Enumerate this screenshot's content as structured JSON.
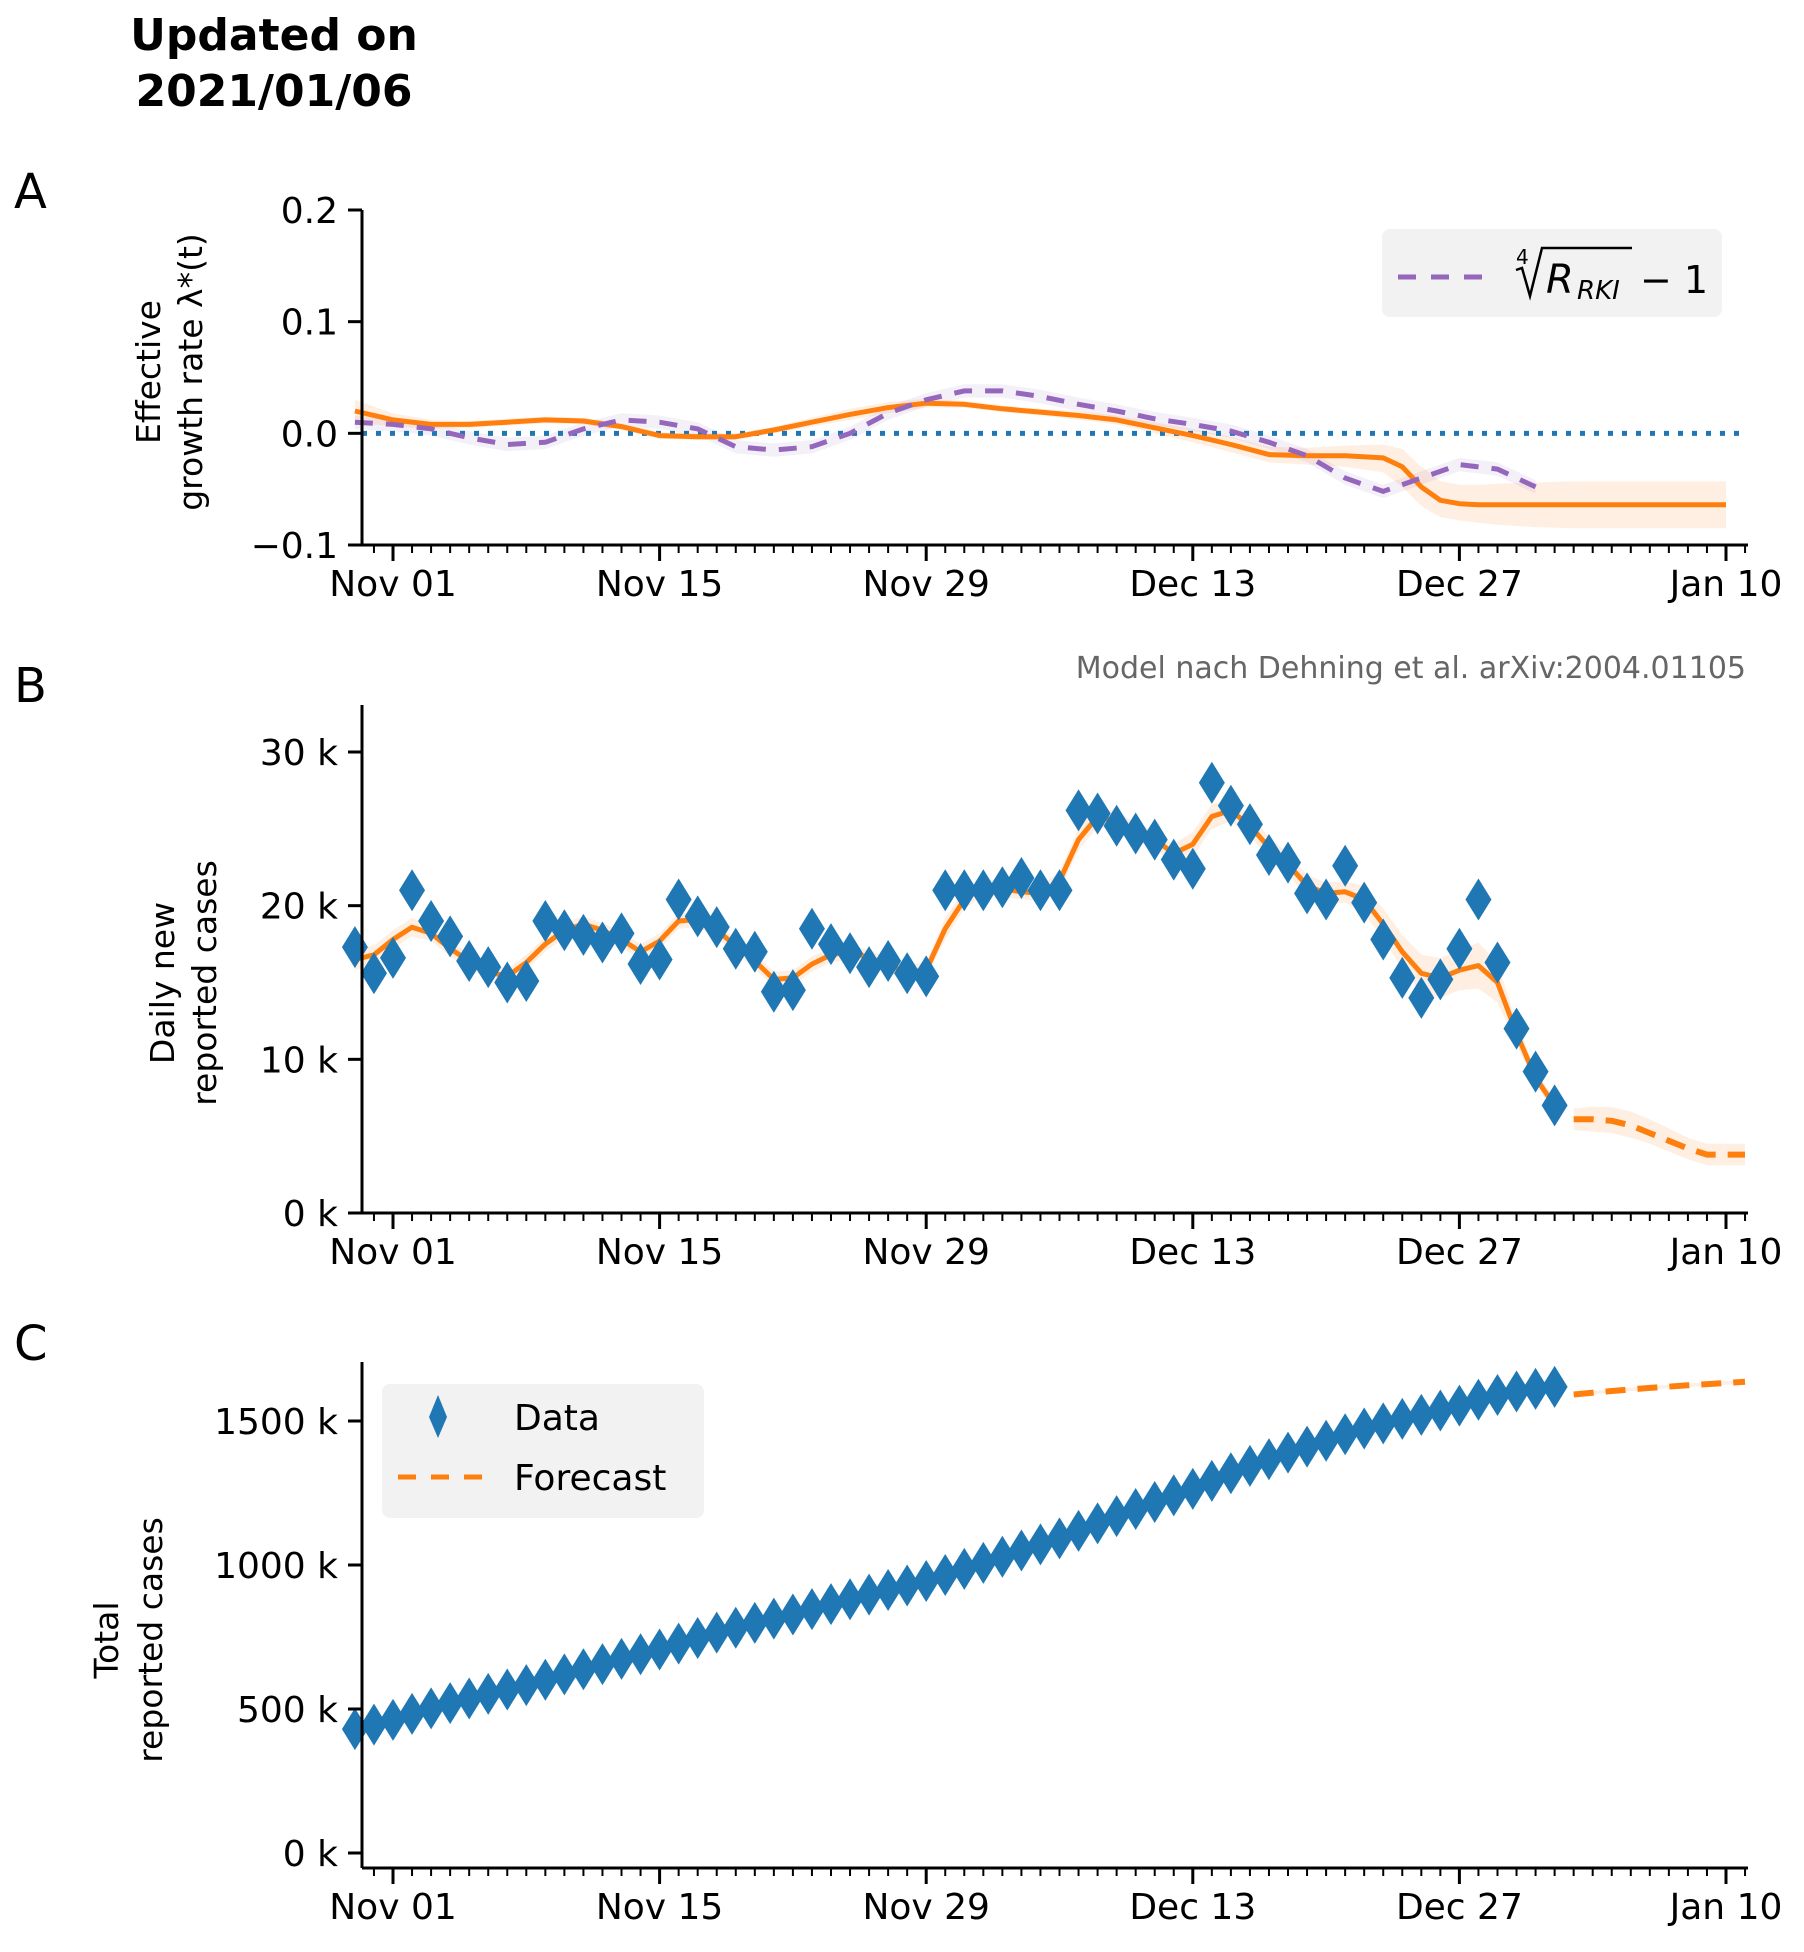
{
  "header": {
    "title_line1": "Updated on",
    "title_line2": "2021/01/06"
  },
  "colors": {
    "data": "#1f77b4",
    "model": "#ff7f0e",
    "band": "#ff7f0e",
    "rki": "#9467bd",
    "zero_line": "#1f77b4",
    "legend_bg": "#f2f2f2",
    "credit": "#666666"
  },
  "x_axis": {
    "start": "2020-10-30",
    "end": "2021-01-11",
    "tick_labels": [
      "Nov 01",
      "Nov 15",
      "Nov 29",
      "Dec 13",
      "Dec 27",
      "Jan 10"
    ],
    "tick_dates": [
      "2020-11-01",
      "2020-11-15",
      "2020-11-29",
      "2020-12-13",
      "2020-12-27",
      "2021-01-10"
    ]
  },
  "credit": "Model nach Dehning et al. arXiv:2004.01105",
  "chart_data": [
    {
      "panel": "A",
      "type": "line",
      "ylabel_line1": "Effective",
      "ylabel_line2": "growth rate λ*(t)",
      "ylim": [
        -0.1,
        0.2
      ],
      "yticks": [
        0.2,
        0.1,
        0.0,
        -0.1
      ],
      "ytick_labels": [
        "0.2",
        "0.1",
        "0.0",
        "−0.1"
      ],
      "legend": {
        "placement": "top-right",
        "entries": [
          {
            "label_main": "R",
            "label_sub": "RKI",
            "label_root": "4",
            "label_tail": "− 1",
            "style": "dashed",
            "series": "rki"
          }
        ]
      },
      "reference_line": {
        "y": 0.0,
        "style": "dotted"
      },
      "series": [
        {
          "name": "model_lambda",
          "style": "solid",
          "x_days": [
            0,
            2,
            4,
            6,
            8,
            10,
            12,
            14,
            16,
            18,
            20,
            22,
            24,
            26,
            28,
            30,
            32,
            34,
            36,
            38,
            40,
            42,
            44,
            46,
            48,
            50,
            52,
            54,
            55,
            56,
            57,
            58,
            59,
            60,
            62,
            64,
            66,
            68,
            70,
            72
          ],
          "values": [
            0.02,
            0.012,
            0.008,
            0.008,
            0.01,
            0.012,
            0.011,
            0.006,
            -0.002,
            -0.003,
            -0.003,
            0.003,
            0.01,
            0.017,
            0.023,
            0.027,
            0.026,
            0.022,
            0.019,
            0.016,
            0.012,
            0.005,
            -0.002,
            -0.01,
            -0.019,
            -0.02,
            -0.02,
            -0.022,
            -0.03,
            -0.048,
            -0.06,
            -0.063,
            -0.064,
            -0.064,
            -0.064,
            -0.064,
            -0.064,
            -0.064,
            -0.064,
            -0.064
          ],
          "band_low": [
            0.01,
            0.006,
            0.004,
            0.005,
            0.007,
            0.009,
            0.008,
            0.003,
            -0.005,
            -0.006,
            -0.006,
            0.0,
            0.006,
            0.012,
            0.018,
            0.023,
            0.023,
            0.019,
            0.016,
            0.012,
            0.008,
            0.0,
            -0.008,
            -0.017,
            -0.026,
            -0.028,
            -0.03,
            -0.035,
            -0.048,
            -0.065,
            -0.075,
            -0.078,
            -0.08,
            -0.082,
            -0.084,
            -0.085,
            -0.085,
            -0.085,
            -0.085,
            -0.085
          ],
          "band_high": [
            0.03,
            0.018,
            0.012,
            0.011,
            0.013,
            0.015,
            0.014,
            0.009,
            0.001,
            0.0,
            0.0,
            0.006,
            0.014,
            0.022,
            0.028,
            0.031,
            0.029,
            0.025,
            0.022,
            0.02,
            0.016,
            0.01,
            0.004,
            -0.003,
            -0.012,
            -0.013,
            -0.011,
            -0.01,
            -0.014,
            -0.03,
            -0.043,
            -0.046,
            -0.046,
            -0.045,
            -0.044,
            -0.043,
            -0.043,
            -0.043,
            -0.043,
            -0.043
          ]
        },
        {
          "name": "rki_4th_root_R_minus_1",
          "style": "dashed",
          "x_days": [
            0,
            2,
            4,
            6,
            8,
            10,
            12,
            14,
            16,
            18,
            20,
            22,
            24,
            26,
            28,
            30,
            32,
            34,
            36,
            38,
            40,
            42,
            44,
            46,
            48,
            50,
            52,
            54,
            56,
            58,
            60,
            62
          ],
          "values": [
            0.01,
            0.008,
            0.004,
            -0.004,
            -0.01,
            -0.008,
            0.004,
            0.012,
            0.01,
            0.004,
            -0.012,
            -0.015,
            -0.012,
            0.0,
            0.018,
            0.03,
            0.038,
            0.038,
            0.033,
            0.026,
            0.02,
            0.013,
            0.008,
            0.002,
            -0.008,
            -0.02,
            -0.04,
            -0.052,
            -0.04,
            -0.028,
            -0.032,
            -0.048
          ]
        }
      ]
    },
    {
      "panel": "B",
      "type": "scatter",
      "ylabel_line1": "Daily new",
      "ylabel_line2": "reported cases",
      "ylim": [
        0,
        33000
      ],
      "yticks": [
        30000,
        20000,
        10000,
        0
      ],
      "ytick_labels": [
        "30 k",
        "20 k",
        "10 k",
        "0 k"
      ],
      "data_series": {
        "name": "Data",
        "start_day": 0,
        "values": [
          17300,
          15600,
          16600,
          21000,
          19000,
          18000,
          16400,
          16000,
          15000,
          15100,
          19000,
          18400,
          18100,
          17600,
          18200,
          16200,
          16500,
          20400,
          19300,
          18600,
          17200,
          17000,
          14400,
          14500,
          18500,
          17500,
          16900,
          16000,
          16400,
          15600,
          15400,
          21000,
          21000,
          21000,
          21200,
          21800,
          21000,
          21000,
          26200,
          26000,
          25200,
          24700,
          24300,
          23000,
          22400,
          28000,
          26500,
          25300,
          23300,
          22800,
          20800,
          20400,
          22600,
          20200,
          17800,
          15300,
          14000,
          15200,
          17200,
          20400,
          16300,
          12000,
          9200,
          7000
        ]
      },
      "model_series": {
        "name": "model_fit",
        "style": "solid",
        "start_day": 0,
        "values": [
          16500,
          16800,
          17800,
          18600,
          18200,
          17200,
          16400,
          15700,
          15400,
          16300,
          17500,
          18400,
          18800,
          18400,
          17800,
          17000,
          17700,
          19000,
          19100,
          18400,
          17400,
          16400,
          15200,
          15300,
          16200,
          16800,
          17000,
          16600,
          16100,
          15700,
          15800,
          18500,
          20400,
          21200,
          21100,
          20900,
          20800,
          21600,
          24300,
          25800,
          25500,
          24800,
          24300,
          23400,
          24000,
          25800,
          26200,
          25200,
          23800,
          22700,
          21300,
          20800,
          20900,
          20400,
          18800,
          17000,
          15600,
          15300,
          15800,
          16100,
          15000,
          11700,
          8800,
          7000
        ],
        "band_low": [
          15800,
          16200,
          17200,
          18000,
          17700,
          16700,
          15900,
          15200,
          14900,
          15800,
          17000,
          17900,
          18300,
          17900,
          17300,
          16500,
          17200,
          18500,
          18600,
          17900,
          16900,
          15900,
          14700,
          14800,
          15700,
          16300,
          16500,
          16100,
          15600,
          15200,
          15300,
          17800,
          19800,
          20700,
          20600,
          20400,
          20300,
          21000,
          23600,
          25100,
          24900,
          24200,
          23700,
          22800,
          23200,
          25000,
          25500,
          24500,
          23100,
          22000,
          20600,
          20100,
          20200,
          19500,
          17800,
          15900,
          14400,
          14000,
          14500,
          14600,
          13700,
          11000,
          8300,
          6600
        ],
        "band_high": [
          17200,
          17400,
          18400,
          19200,
          18700,
          17700,
          16900,
          16200,
          15900,
          16800,
          18000,
          18900,
          19300,
          18900,
          18300,
          17500,
          18200,
          19500,
          19600,
          18900,
          17900,
          16900,
          15700,
          15800,
          16700,
          17300,
          17500,
          17100,
          16600,
          16200,
          16300,
          19200,
          21000,
          21700,
          21600,
          21400,
          21300,
          22200,
          25000,
          26500,
          26100,
          25400,
          24900,
          24000,
          24800,
          26600,
          26900,
          25900,
          24500,
          23400,
          22000,
          21500,
          21600,
          21300,
          19800,
          18100,
          16800,
          16600,
          17100,
          17600,
          16300,
          12400,
          9300,
          7400
        ]
      },
      "forecast_series": {
        "name": "Forecast",
        "style": "dashed",
        "x_days": [
          64,
          65,
          66,
          67,
          68,
          69,
          70,
          71,
          72,
          73
        ],
        "values": [
          6100,
          6100,
          6000,
          5700,
          5200,
          4700,
          4200,
          3800,
          3800,
          3800
        ],
        "band_low": [
          5400,
          5300,
          5200,
          4900,
          4500,
          4000,
          3500,
          3100,
          3100,
          3100
        ],
        "band_high": [
          6800,
          6900,
          6900,
          6600,
          6100,
          5500,
          4900,
          4500,
          4500,
          4500
        ]
      }
    },
    {
      "panel": "C",
      "type": "scatter",
      "ylabel_line1": "Total",
      "ylabel_line2": "reported cases",
      "ylim": [
        -40000,
        1750000
      ],
      "yticks": [
        1500000,
        1000000,
        500000,
        0
      ],
      "ytick_labels": [
        "1500 k",
        "1000 k",
        "500 k",
        "0 k"
      ],
      "legend": {
        "placement": "top-left",
        "entries": [
          {
            "label": "Data",
            "marker": "diamond",
            "series": "data"
          },
          {
            "label": "Forecast",
            "style": "dashed",
            "series": "forecast"
          }
        ]
      },
      "data_series": {
        "name": "Data",
        "start_day": 0,
        "cumulative_start": 430000,
        "note": "cumulative sum of panel B daily values starting from 430k"
      },
      "forecast_series": {
        "name": "Forecast",
        "style": "dashed",
        "x_days": [
          64,
          66,
          68,
          70,
          72,
          73
        ],
        "values": [
          1592000,
          1604000,
          1615000,
          1624000,
          1632000,
          1636000
        ]
      }
    }
  ]
}
